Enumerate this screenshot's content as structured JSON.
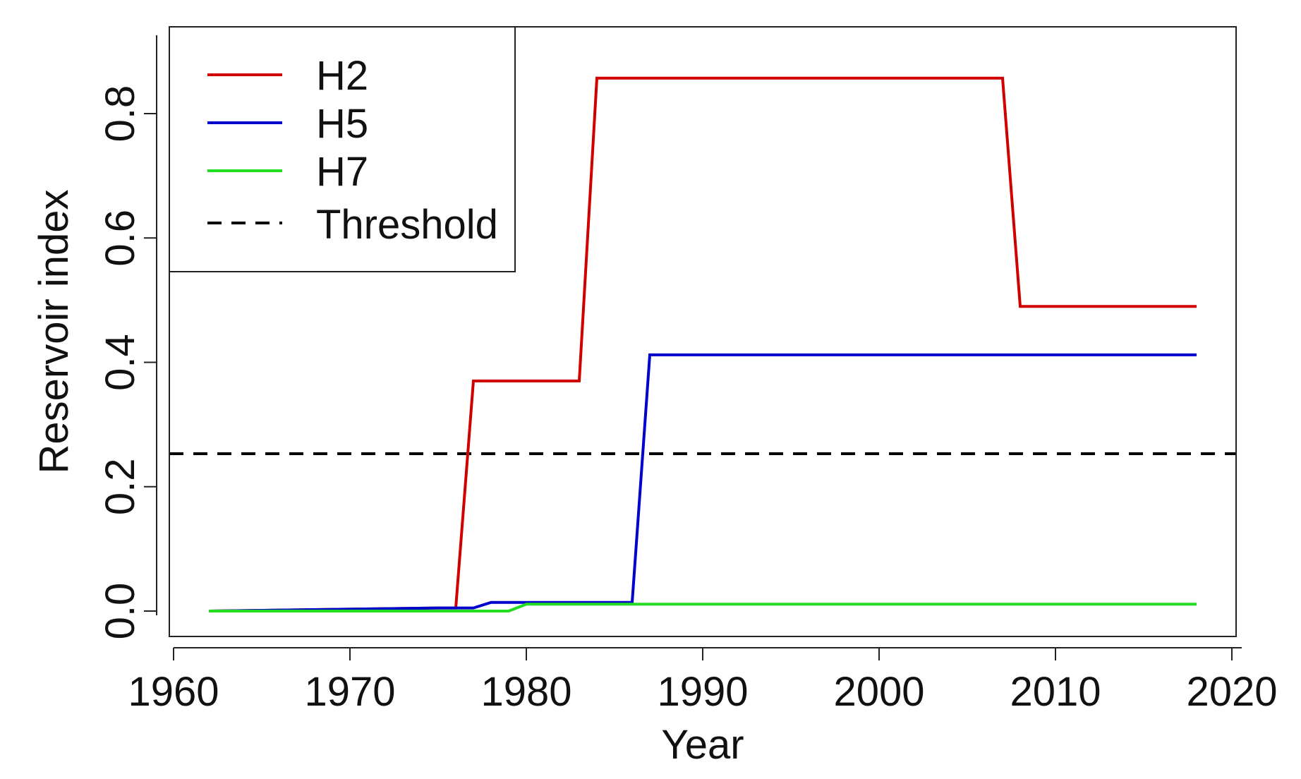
{
  "chart_data": {
    "type": "line",
    "xlabel": "Year",
    "ylabel": "Reservoir index",
    "xlim": [
      1960,
      2020
    ],
    "ylim": [
      -0.04,
      0.94
    ],
    "x_ticks": [
      1960,
      1970,
      1980,
      1990,
      2000,
      2010,
      2020
    ],
    "x_tick_labels": [
      "1960",
      "1970",
      "1980",
      "1990",
      "2000",
      "2010",
      "2020"
    ],
    "y_ticks": [
      0.0,
      0.2,
      0.4,
      0.6,
      0.8
    ],
    "y_tick_labels": [
      "0.0",
      "0.2",
      "0.4",
      "0.6",
      "0.8"
    ],
    "grid": false,
    "legend_position": "top-left",
    "series": [
      {
        "name": "H2",
        "color": "#d00000",
        "x": [
          1962,
          1975,
          1976,
          1977,
          1983,
          1984,
          2007,
          2008,
          2018
        ],
        "y": [
          0.0,
          0.005,
          0.005,
          0.37,
          0.37,
          0.857,
          0.857,
          0.49,
          0.49
        ]
      },
      {
        "name": "H5",
        "color": "#0000cc",
        "x": [
          1962,
          1975,
          1977,
          1978,
          1986,
          1987,
          2018
        ],
        "y": [
          0.0,
          0.005,
          0.005,
          0.014,
          0.014,
          0.412,
          0.412
        ]
      },
      {
        "name": "H7",
        "color": "#22dd22",
        "x": [
          1962,
          1979,
          1980,
          2018
        ],
        "y": [
          0.0,
          0.0,
          0.011,
          0.011
        ]
      }
    ],
    "threshold": {
      "name": "Threshold",
      "color": "#000000",
      "y": 0.253
    }
  }
}
